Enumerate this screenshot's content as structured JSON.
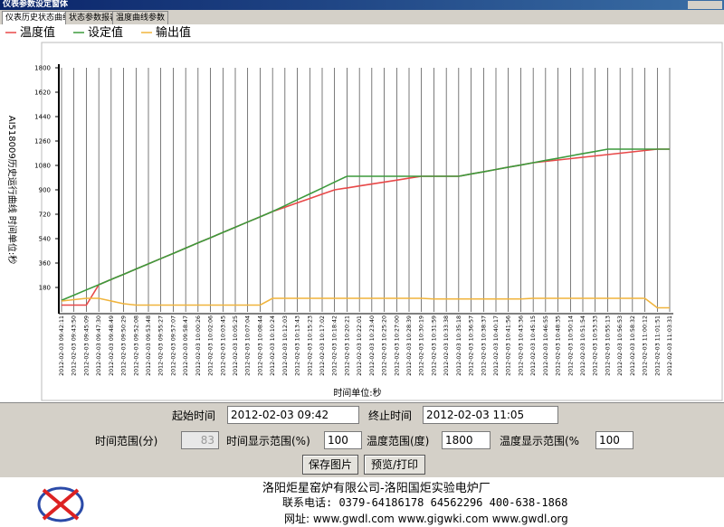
{
  "window": {
    "title": "仪表参数设定窗体",
    "tabs": [
      "仪表历史状态曲线",
      "状态参数报表",
      "温度曲线参数"
    ]
  },
  "chart_data": {
    "type": "line",
    "y_label": "AI518009历史运行曲线 时间单位:秒",
    "x_label": "时间单位:秒",
    "categories": [
      "2012-02-03 09:42:11",
      "2012-02-03 09:43:50",
      "2012-02-03 09:45:09",
      "2012-02-03 09:47:30",
      "2012-02-03 09:48:49",
      "2012-02-03 09:50:29",
      "2012-02-03 09:52:08",
      "2012-02-03 09:53:48",
      "2012-02-03 09:55:27",
      "2012-02-03 09:57:07",
      "2012-02-03 09:58:47",
      "2012-02-03 10:00:26",
      "2012-02-03 10:02:06",
      "2012-02-03 10:03:45",
      "2012-02-03 10:05:25",
      "2012-02-03 10:07:04",
      "2012-02-03 10:08:44",
      "2012-02-03 10:10:24",
      "2012-02-03 10:12:03",
      "2012-02-03 10:13:43",
      "2012-02-03 10:15:23",
      "2012-02-03 10:17:02",
      "2012-02-03 10:18:42",
      "2012-02-03 10:20:21",
      "2012-02-03 10:22:01",
      "2012-02-03 10:23:40",
      "2012-02-03 10:25:20",
      "2012-02-03 10:27:00",
      "2012-02-03 10:28:39",
      "2012-02-03 10:30:19",
      "2012-02-03 10:31:59",
      "2012-02-03 10:33:38",
      "2012-02-03 10:35:18",
      "2012-02-03 10:36:57",
      "2012-02-03 10:38:37",
      "2012-02-03 10:40:17",
      "2012-02-03 10:41:56",
      "2012-02-03 10:43:36",
      "2012-02-03 10:45:15",
      "2012-02-03 10:46:55",
      "2012-02-03 10:48:35",
      "2012-02-03 10:50:14",
      "2012-02-03 10:51:54",
      "2012-02-03 10:53:33",
      "2012-02-03 10:55:13",
      "2012-02-03 10:56:53",
      "2012-02-03 10:58:32",
      "2012-02-03 11:00:12",
      "2012-02-03 11:01:51",
      "2012-02-03 11:03:31"
    ],
    "series": [
      {
        "name": "温度值",
        "color": "#e84848",
        "values": [
          50,
          50,
          50,
          200,
          239,
          277,
          316,
          354,
          393,
          431,
          470,
          509,
          547,
          586,
          624,
          663,
          701,
          740,
          772,
          804,
          836,
          868,
          900,
          914,
          929,
          943,
          957,
          971,
          986,
          1000,
          1000,
          1000,
          1000,
          1017,
          1033,
          1050,
          1067,
          1083,
          1100,
          1110,
          1120,
          1130,
          1140,
          1150,
          1160,
          1170,
          1180,
          1190,
          1200,
          1200
        ]
      },
      {
        "name": "设定值",
        "color": "#3c9a3c",
        "values": [
          85,
          123,
          162,
          200,
          239,
          277,
          316,
          354,
          393,
          431,
          470,
          509,
          547,
          586,
          624,
          663,
          701,
          740,
          783,
          827,
          870,
          913,
          957,
          1000,
          1000,
          1000,
          1000,
          1000,
          1000,
          1000,
          1000,
          1000,
          1000,
          1017,
          1033,
          1050,
          1067,
          1083,
          1100,
          1117,
          1133,
          1150,
          1167,
          1183,
          1200,
          1200,
          1200,
          1200,
          1200,
          1200
        ]
      },
      {
        "name": "输出值",
        "color": "#f0b43c",
        "values": [
          80,
          90,
          100,
          100,
          80,
          60,
          50,
          50,
          50,
          50,
          50,
          50,
          50,
          50,
          50,
          50,
          50,
          100,
          100,
          100,
          100,
          100,
          100,
          100,
          100,
          100,
          100,
          100,
          100,
          100,
          95,
          95,
          95,
          95,
          95,
          95,
          95,
          95,
          100,
          100,
          100,
          100,
          100,
          100,
          100,
          100,
          100,
          100,
          30,
          30
        ]
      }
    ],
    "ylim": [
      0,
      1800
    ],
    "yticks": [
      180,
      360,
      540,
      720,
      900,
      1080,
      1260,
      1440,
      1620,
      1800
    ],
    "grid": true
  },
  "controls": {
    "start_label": "起始时间",
    "start_value": "2012-02-03 09:42",
    "end_label": "终止时间",
    "end_value": "2012-02-03 11:05",
    "range_label": "时间范围(分)",
    "range_value": "83",
    "time_pct_label": "时间显示范围(%)",
    "time_pct_value": "100",
    "temp_range_label": "温度范围(度)",
    "temp_range_value": "1800",
    "temp_pct_label": "温度显示范围(%",
    "temp_pct_value": "100",
    "save_button": "保存图片",
    "print_button": "预览/打印"
  },
  "footer": {
    "company": "洛阳炬星窑炉有限公司-洛阳国炬实验电炉厂",
    "phone": "联系电话: 0379-64186178 64562296 400-638-1868",
    "web": "网址: www.gwdl.com www.gigwki.com www.gwdl.org"
  }
}
